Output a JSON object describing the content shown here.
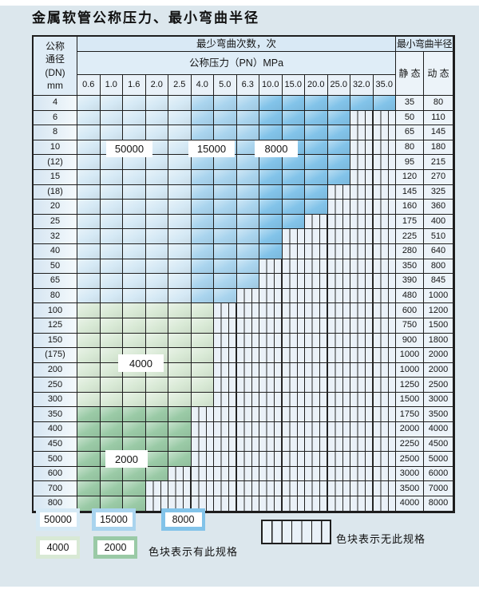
{
  "title": "金属软管公称压力、最小弯曲半径",
  "colors": {
    "c50000": "#d5e9f5",
    "c15000": "#a9d4ee",
    "c8000": "#82c3e9",
    "c4000": "#d8e9d5",
    "c2000": "#9acaa6",
    "nospec_bg": "#eaf1f8",
    "grid_line": "#1e1e1e",
    "page_bg": "#dce7ed"
  },
  "table": {
    "corner": {
      "line1": "公称",
      "line2": "通径",
      "line3": "(DN)",
      "line4": "mm"
    },
    "bend_cycles_header": "最少弯曲次数，次",
    "pressure_header": "公称压力（PN）MPa",
    "radius_header": "最小弯曲半径",
    "static_header": "静 态",
    "dynamic_header": "动 态",
    "pressures": [
      "0.6",
      "1.0",
      "1.6",
      "2.0",
      "2.5",
      "4.0",
      "5.0",
      "6.3",
      "10.0",
      "15.0",
      "20.0",
      "25.0",
      "32.0",
      "35.0"
    ],
    "rows": [
      {
        "dn": "4",
        "static": "35",
        "dynamic": "80",
        "colored_until": 13,
        "palette": "blue"
      },
      {
        "dn": "6",
        "static": "50",
        "dynamic": "110",
        "colored_until": 11,
        "palette": "blue"
      },
      {
        "dn": "8",
        "static": "65",
        "dynamic": "145",
        "colored_until": 11,
        "palette": "blue"
      },
      {
        "dn": "10",
        "static": "80",
        "dynamic": "180",
        "colored_until": 11,
        "palette": "blue"
      },
      {
        "dn": "(12)",
        "static": "95",
        "dynamic": "215",
        "colored_until": 11,
        "palette": "blue"
      },
      {
        "dn": "15",
        "static": "120",
        "dynamic": "270",
        "colored_until": 11,
        "palette": "blue"
      },
      {
        "dn": "(18)",
        "static": "145",
        "dynamic": "325",
        "colored_until": 10,
        "palette": "blue"
      },
      {
        "dn": "20",
        "static": "160",
        "dynamic": "360",
        "colored_until": 10,
        "palette": "blue"
      },
      {
        "dn": "25",
        "static": "175",
        "dynamic": "400",
        "colored_until": 9,
        "palette": "blue"
      },
      {
        "dn": "32",
        "static": "225",
        "dynamic": "510",
        "colored_until": 8,
        "palette": "blue"
      },
      {
        "dn": "40",
        "static": "280",
        "dynamic": "640",
        "colored_until": 8,
        "palette": "blue"
      },
      {
        "dn": "50",
        "static": "350",
        "dynamic": "800",
        "colored_until": 7,
        "palette": "blue"
      },
      {
        "dn": "65",
        "static": "390",
        "dynamic": "845",
        "colored_until": 7,
        "palette": "blue"
      },
      {
        "dn": "80",
        "static": "480",
        "dynamic": "1000",
        "colored_until": 6,
        "palette": "blue"
      },
      {
        "dn": "100",
        "static": "600",
        "dynamic": "1200",
        "colored_until": 5,
        "palette": "green4000"
      },
      {
        "dn": "125",
        "static": "750",
        "dynamic": "1500",
        "colored_until": 5,
        "palette": "green4000"
      },
      {
        "dn": "150",
        "static": "900",
        "dynamic": "1800",
        "colored_until": 5,
        "palette": "green4000"
      },
      {
        "dn": "(175)",
        "static": "1000",
        "dynamic": "2000",
        "colored_until": 5,
        "palette": "green4000"
      },
      {
        "dn": "200",
        "static": "1000",
        "dynamic": "2000",
        "colored_until": 5,
        "palette": "green4000"
      },
      {
        "dn": "250",
        "static": "1250",
        "dynamic": "2500",
        "colored_until": 5,
        "palette": "green4000"
      },
      {
        "dn": "300",
        "static": "1500",
        "dynamic": "3000",
        "colored_until": 5,
        "palette": "green4000"
      },
      {
        "dn": "350",
        "static": "1750",
        "dynamic": "3500",
        "colored_until": 4,
        "palette": "green2000"
      },
      {
        "dn": "400",
        "static": "2000",
        "dynamic": "4000",
        "colored_until": 4,
        "palette": "green2000"
      },
      {
        "dn": "450",
        "static": "2250",
        "dynamic": "4500",
        "colored_until": 4,
        "palette": "green2000"
      },
      {
        "dn": "500",
        "static": "2500",
        "dynamic": "5000",
        "colored_until": 4,
        "palette": "green2000"
      },
      {
        "dn": "600",
        "static": "3000",
        "dynamic": "6000",
        "colored_until": 3,
        "palette": "green2000"
      },
      {
        "dn": "700",
        "static": "3500",
        "dynamic": "7000",
        "colored_until": 2,
        "palette": "green2000"
      },
      {
        "dn": "800",
        "static": "4000",
        "dynamic": "8000",
        "colored_until": 2,
        "palette": "green2000"
      }
    ]
  },
  "overlays": [
    {
      "label": "50000"
    },
    {
      "label": "15000"
    },
    {
      "label": "8000"
    },
    {
      "label": "4000"
    },
    {
      "label": "2000"
    }
  ],
  "legend": {
    "items": [
      {
        "label": "50000",
        "color": "#d5e9f5"
      },
      {
        "label": "15000",
        "color": "#a9d4ee"
      },
      {
        "label": "8000",
        "color": "#82c3e9"
      },
      {
        "label": "4000",
        "color": "#d8e9d5"
      },
      {
        "label": "2000",
        "color": "#9acaa6"
      }
    ],
    "has_spec_text": "色块表示有此规格",
    "no_spec_text": "色块表示无此规格"
  }
}
